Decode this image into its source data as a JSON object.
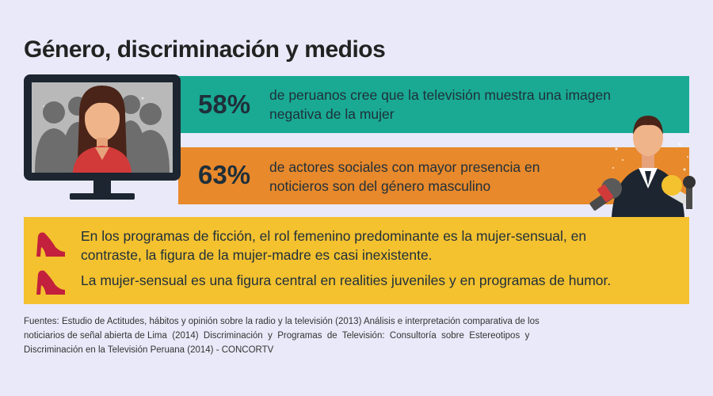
{
  "title": "Género, discriminación y medios",
  "stats": [
    {
      "value": "58%",
      "line1": "de peruanos cree que la televisión muestra una imagen",
      "line2": "negativa de la mujer",
      "color": "#1aaa94"
    },
    {
      "value": "63%",
      "line1": "de actores sociales con mayor presencia en",
      "line2": "noticieros son del género masculino",
      "color": "#e8892b"
    }
  ],
  "facts": [
    {
      "line1": "En los programas de ficción, el rol femenino predominante es la mujer-sensual, en",
      "line2": "contraste, la figura de la mujer-madre es casi inexistente."
    },
    {
      "line1": "La mujer-sensual es una figura central en realities juveniles y en programas de humor."
    }
  ],
  "sources": {
    "line1": "Fuentes: Estudio de Actitudes, hábitos y opinión sobre la radio y la televisión (2013) Análisis e interpretación comparativa de los",
    "line2": "noticiarios de señal abierta de Lima  (2014)  Discriminación  y  Programas  de  Televisión:  Consultoría  sobre  Estereotipos  y",
    "line3": "Discriminación en la Televisión Peruana (2014) - CONCORTV"
  },
  "icons": [
    "tv-monitor-icon",
    "news-presenter-icon",
    "high-heel-shoe-icon"
  ],
  "colors": {
    "teal": "#1aaa94",
    "orange": "#e8892b",
    "yellow": "#f4c12f",
    "background": "#e9e9f9",
    "shoe": "#c2203c"
  }
}
